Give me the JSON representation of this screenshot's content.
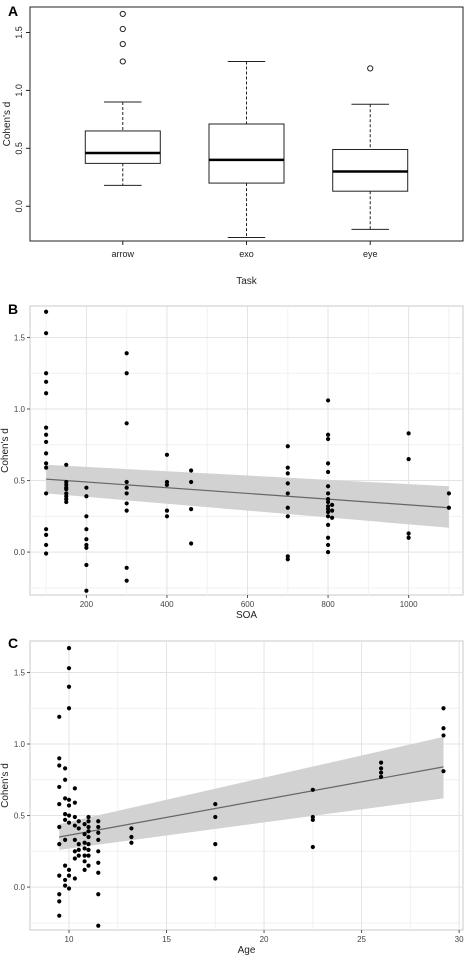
{
  "chart_data": [
    {
      "panel_label": "A",
      "type": "box",
      "xlabel": "Task",
      "ylabel": "Cohen's d",
      "ylim": [
        -0.3,
        1.72
      ],
      "yticks": [
        0.0,
        0.5,
        1.0,
        1.5
      ],
      "ytick_labels": [
        "0.0",
        "0.5",
        "1.0",
        "1.5"
      ],
      "grid": false,
      "categories": [
        "arrow",
        "exo",
        "eye"
      ],
      "boxes": [
        {
          "category": "arrow",
          "lower_whisker": 0.18,
          "q1": 0.37,
          "median": 0.46,
          "q3": 0.65,
          "upper_whisker": 0.9,
          "outliers": [
            1.25,
            1.4,
            1.53,
            1.66
          ]
        },
        {
          "category": "exo",
          "lower_whisker": -0.27,
          "q1": 0.2,
          "median": 0.4,
          "q3": 0.71,
          "upper_whisker": 1.25,
          "outliers": []
        },
        {
          "category": "eye",
          "lower_whisker": -0.2,
          "q1": 0.13,
          "median": 0.3,
          "q3": 0.49,
          "upper_whisker": 0.88,
          "outliers": [
            1.19
          ]
        }
      ]
    },
    {
      "panel_label": "B",
      "type": "scatter",
      "xlabel": "SOA",
      "ylabel": "Cohen's d",
      "xlim": [
        60,
        1135
      ],
      "ylim": [
        -0.3,
        1.72
      ],
      "xticks": [
        200,
        400,
        600,
        800,
        1000
      ],
      "yticks": [
        0.0,
        0.5,
        1.0,
        1.5
      ],
      "ytick_labels": [
        "0.0",
        "0.5",
        "1.0",
        "1.5"
      ],
      "grid": true,
      "fit": {
        "x": [
          100,
          1100
        ],
        "y": [
          0.51,
          0.31
        ],
        "ci_lower": [
          0.41,
          0.17
        ],
        "ci_upper": [
          0.61,
          0.46
        ]
      },
      "points": [
        [
          100,
          1.68
        ],
        [
          100,
          1.53
        ],
        [
          100,
          1.25
        ],
        [
          100,
          1.19
        ],
        [
          100,
          1.11
        ],
        [
          100,
          0.87
        ],
        [
          100,
          0.82
        ],
        [
          100,
          0.77
        ],
        [
          100,
          0.69
        ],
        [
          100,
          0.62
        ],
        [
          100,
          0.59
        ],
        [
          100,
          0.41
        ],
        [
          100,
          0.16
        ],
        [
          100,
          0.12
        ],
        [
          100,
          0.05
        ],
        [
          100,
          -0.01
        ],
        [
          150,
          0.61
        ],
        [
          150,
          0.49
        ],
        [
          150,
          0.47
        ],
        [
          150,
          0.45
        ],
        [
          150,
          0.44
        ],
        [
          150,
          0.41
        ],
        [
          150,
          0.39
        ],
        [
          150,
          0.37
        ],
        [
          150,
          0.35
        ],
        [
          200,
          0.45
        ],
        [
          200,
          0.39
        ],
        [
          200,
          0.25
        ],
        [
          200,
          0.16
        ],
        [
          200,
          0.09
        ],
        [
          200,
          0.05
        ],
        [
          200,
          0.03
        ],
        [
          200,
          -0.09
        ],
        [
          200,
          -0.27
        ],
        [
          300,
          1.39
        ],
        [
          300,
          1.25
        ],
        [
          300,
          0.9
        ],
        [
          300,
          0.49
        ],
        [
          300,
          0.45
        ],
        [
          300,
          0.41
        ],
        [
          300,
          0.34
        ],
        [
          300,
          0.29
        ],
        [
          300,
          -0.11
        ],
        [
          300,
          -0.2
        ],
        [
          400,
          0.68
        ],
        [
          400,
          0.49
        ],
        [
          400,
          0.47
        ],
        [
          400,
          0.29
        ],
        [
          400,
          0.25
        ],
        [
          460,
          0.57
        ],
        [
          460,
          0.49
        ],
        [
          460,
          0.3
        ],
        [
          460,
          0.06
        ],
        [
          700,
          0.74
        ],
        [
          700,
          0.59
        ],
        [
          700,
          0.55
        ],
        [
          700,
          0.48
        ],
        [
          700,
          0.41
        ],
        [
          700,
          0.31
        ],
        [
          700,
          0.25
        ],
        [
          700,
          -0.03
        ],
        [
          700,
          -0.05
        ],
        [
          800,
          1.06
        ],
        [
          800,
          0.82
        ],
        [
          800,
          0.79
        ],
        [
          800,
          0.62
        ],
        [
          800,
          0.56
        ],
        [
          800,
          0.46
        ],
        [
          800,
          0.41
        ],
        [
          800,
          0.37
        ],
        [
          800,
          0.35
        ],
        [
          800,
          0.32
        ],
        [
          800,
          0.3
        ],
        [
          800,
          0.28
        ],
        [
          800,
          0.25
        ],
        [
          800,
          0.19
        ],
        [
          800,
          0.1
        ],
        [
          800,
          0.05
        ],
        [
          800,
          0.0
        ],
        [
          810,
          0.33
        ],
        [
          810,
          0.29
        ],
        [
          810,
          0.24
        ],
        [
          1000,
          0.83
        ],
        [
          1000,
          0.65
        ],
        [
          1000,
          0.13
        ],
        [
          1000,
          0.1
        ],
        [
          1100,
          0.41
        ],
        [
          1100,
          0.31
        ]
      ]
    },
    {
      "panel_label": "C",
      "type": "scatter",
      "xlabel": "Age",
      "ylabel": "Cohen's d",
      "xlim": [
        8,
        30.2
      ],
      "ylim": [
        -0.3,
        1.72
      ],
      "xticks": [
        10,
        15,
        20,
        25,
        30
      ],
      "yticks": [
        0.0,
        0.5,
        1.0,
        1.5
      ],
      "ytick_labels": [
        "0.0",
        "0.5",
        "1.0",
        "1.5"
      ],
      "grid": true,
      "fit": {
        "x": [
          9.5,
          29.2
        ],
        "y": [
          0.35,
          0.84
        ],
        "ci_lower": [
          0.26,
          0.62
        ],
        "ci_upper": [
          0.44,
          1.05
        ]
      },
      "points": [
        [
          9.5,
          1.19
        ],
        [
          9.5,
          0.9
        ],
        [
          9.5,
          0.85
        ],
        [
          9.5,
          0.7
        ],
        [
          9.5,
          0.58
        ],
        [
          9.5,
          0.42
        ],
        [
          9.5,
          0.3
        ],
        [
          9.5,
          0.08
        ],
        [
          9.5,
          -0.05
        ],
        [
          9.5,
          -0.1
        ],
        [
          9.5,
          -0.2
        ],
        [
          9.8,
          0.83
        ],
        [
          9.8,
          0.75
        ],
        [
          9.8,
          0.62
        ],
        [
          9.8,
          0.51
        ],
        [
          9.8,
          0.47
        ],
        [
          9.8,
          0.33
        ],
        [
          9.8,
          0.15
        ],
        [
          9.8,
          0.05
        ],
        [
          9.8,
          0.01
        ],
        [
          10.0,
          1.67
        ],
        [
          10.0,
          1.53
        ],
        [
          10.0,
          1.4
        ],
        [
          10.0,
          1.25
        ],
        [
          10.0,
          0.61
        ],
        [
          10.0,
          0.57
        ],
        [
          10.0,
          0.5
        ],
        [
          10.0,
          0.45
        ],
        [
          10.0,
          0.12
        ],
        [
          10.0,
          0.08
        ],
        [
          10.0,
          -0.01
        ],
        [
          10.3,
          0.69
        ],
        [
          10.3,
          0.59
        ],
        [
          10.3,
          0.49
        ],
        [
          10.3,
          0.43
        ],
        [
          10.3,
          0.33
        ],
        [
          10.3,
          0.25
        ],
        [
          10.3,
          0.2
        ],
        [
          10.3,
          0.06
        ],
        [
          10.5,
          0.46
        ],
        [
          10.5,
          0.41
        ],
        [
          10.5,
          0.3
        ],
        [
          10.5,
          0.26
        ],
        [
          10.5,
          0.22
        ],
        [
          10.8,
          0.44
        ],
        [
          10.8,
          0.37
        ],
        [
          10.8,
          0.31
        ],
        [
          10.8,
          0.27
        ],
        [
          10.8,
          0.22
        ],
        [
          10.8,
          0.18
        ],
        [
          10.8,
          0.12
        ],
        [
          11.0,
          0.49
        ],
        [
          11.0,
          0.46
        ],
        [
          11.0,
          0.42
        ],
        [
          11.0,
          0.39
        ],
        [
          11.0,
          0.35
        ],
        [
          11.0,
          0.3
        ],
        [
          11.0,
          0.26
        ],
        [
          11.0,
          0.22
        ],
        [
          11.0,
          0.15
        ],
        [
          11.5,
          0.46
        ],
        [
          11.5,
          0.42
        ],
        [
          11.5,
          0.38
        ],
        [
          11.5,
          0.33
        ],
        [
          11.5,
          0.25
        ],
        [
          11.5,
          0.17
        ],
        [
          11.5,
          0.1
        ],
        [
          11.5,
          -0.05
        ],
        [
          11.5,
          -0.27
        ],
        [
          13.2,
          0.41
        ],
        [
          13.2,
          0.35
        ],
        [
          13.2,
          0.31
        ],
        [
          17.5,
          0.58
        ],
        [
          17.5,
          0.49
        ],
        [
          17.5,
          0.3
        ],
        [
          17.5,
          0.06
        ],
        [
          22.5,
          0.68
        ],
        [
          22.5,
          0.49
        ],
        [
          22.5,
          0.47
        ],
        [
          22.5,
          0.28
        ],
        [
          26.0,
          0.87
        ],
        [
          26.0,
          0.83
        ],
        [
          26.0,
          0.8
        ],
        [
          26.0,
          0.77
        ],
        [
          29.2,
          1.25
        ],
        [
          29.2,
          1.11
        ],
        [
          29.2,
          1.06
        ],
        [
          29.2,
          0.81
        ]
      ]
    }
  ]
}
